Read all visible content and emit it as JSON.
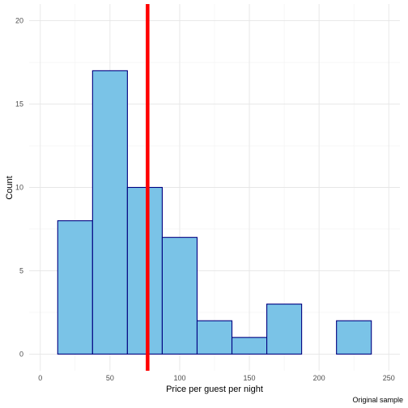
{
  "chart_data": {
    "type": "histogram",
    "xlabel": "Price per guest per night",
    "ylabel": "Count",
    "caption": "Original sample",
    "xlim": [
      -8,
      258
    ],
    "ylim": [
      -1,
      21
    ],
    "x_ticks": [
      0,
      50,
      100,
      150,
      200,
      250
    ],
    "y_ticks": [
      0,
      5,
      10,
      15,
      20
    ],
    "bins": [
      {
        "start": 12.5,
        "end": 37.5,
        "count": 8
      },
      {
        "start": 37.5,
        "end": 62.5,
        "count": 17
      },
      {
        "start": 62.5,
        "end": 87.5,
        "count": 10
      },
      {
        "start": 87.5,
        "end": 112.5,
        "count": 7
      },
      {
        "start": 112.5,
        "end": 137.5,
        "count": 2
      },
      {
        "start": 137.5,
        "end": 162.5,
        "count": 1
      },
      {
        "start": 162.5,
        "end": 187.5,
        "count": 3
      },
      {
        "start": 187.5,
        "end": 212.5,
        "count": 0
      },
      {
        "start": 212.5,
        "end": 237.5,
        "count": 2
      }
    ],
    "vline": {
      "x": 77,
      "color": "#ff0000"
    },
    "bar_fill": "#7ac3e7",
    "bar_stroke": "#000080",
    "grid": true,
    "legend": "none"
  }
}
